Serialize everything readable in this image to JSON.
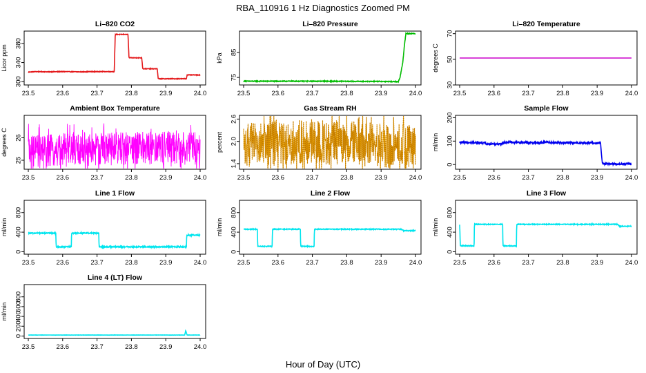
{
  "figure": {
    "title": "RBA_110916  1 Hz Diagnostics Zoomed PM",
    "xlabel": "Hour of Day (UTC)"
  },
  "chart_data": [
    {
      "type": "line",
      "title": "Li–820 CO2",
      "ylabel": "Licor ppm",
      "color": "#e41a1c",
      "xlim": [
        23.5,
        24.0
      ],
      "ylim": [
        293,
        406
      ],
      "yticks": [
        300,
        340,
        380
      ],
      "xticks": [
        "23.5",
        "23.6",
        "23.7",
        "23.8",
        "23.9",
        "24.0"
      ],
      "series": [
        {
          "noise": 0.6,
          "points": [
            [
              23.5,
              320
            ],
            [
              23.52,
              321
            ],
            [
              23.56,
              320.5
            ],
            [
              23.6,
              321
            ],
            [
              23.65,
              320.5
            ],
            [
              23.69,
              321
            ],
            [
              23.75,
              321
            ],
            [
              23.753,
              399
            ],
            [
              23.79,
              399
            ],
            [
              23.793,
              350
            ],
            [
              23.83,
              350
            ],
            [
              23.833,
              327
            ],
            [
              23.875,
              327
            ],
            [
              23.878,
              306
            ],
            [
              23.96,
              306
            ],
            [
              23.962,
              314
            ],
            [
              24.0,
              314
            ]
          ]
        }
      ]
    },
    {
      "type": "line",
      "title": "Li–820 Pressure",
      "ylabel": "kPa",
      "color": "#00bb00",
      "xlim": [
        23.5,
        24.0
      ],
      "ylim": [
        72,
        93.5
      ],
      "yticks": [
        75,
        85
      ],
      "xticks": [
        "23.5",
        "23.6",
        "23.7",
        "23.8",
        "23.9",
        "24.0"
      ],
      "series": [
        {
          "noise": 0.15,
          "points": [
            [
              23.5,
              73.5
            ],
            [
              23.7,
              73.5
            ],
            [
              23.9,
              73.4
            ],
            [
              23.95,
              73.3
            ],
            [
              23.955,
              75
            ],
            [
              23.963,
              81
            ],
            [
              23.968,
              88
            ],
            [
              23.972,
              92.5
            ],
            [
              24.0,
              92.5
            ]
          ]
        }
      ]
    },
    {
      "type": "line",
      "title": "Li–820 Temperature",
      "ylabel": "degrees C",
      "color": "#cc00cc",
      "xlim": [
        23.5,
        24.0
      ],
      "ylim": [
        30,
        72
      ],
      "yticks": [
        30,
        50,
        70
      ],
      "xticks": [
        "23.5",
        "23.6",
        "23.7",
        "23.8",
        "23.9",
        "24.0"
      ],
      "series": [
        {
          "noise": 0,
          "points": [
            [
              23.5,
              51
            ],
            [
              24.0,
              51
            ]
          ]
        }
      ]
    },
    {
      "type": "line",
      "title": "Ambient Box Temperature",
      "ylabel": "degrees C",
      "color": "#ff00ff",
      "xlim": [
        23.5,
        24.0
      ],
      "ylim": [
        24.6,
        27.0
      ],
      "yticks": [
        25.0,
        26.0
      ],
      "xticks": [
        "23.5",
        "23.6",
        "23.7",
        "23.8",
        "23.9",
        "24.0"
      ],
      "series": [
        {
          "noise": 0.75,
          "points": [
            [
              23.5,
              25.35
            ],
            [
              23.6,
              25.45
            ],
            [
              23.7,
              25.5
            ],
            [
              23.8,
              25.55
            ],
            [
              23.9,
              25.55
            ],
            [
              24.0,
              25.55
            ]
          ]
        }
      ]
    },
    {
      "type": "scatter",
      "title": "Gas Stream RH",
      "ylabel": "percent",
      "color": "#e69f00",
      "xlim": [
        23.5,
        24.0
      ],
      "ylim": [
        1.25,
        2.7
      ],
      "yticks": [
        1.4,
        2.0,
        2.6
      ],
      "xticks": [
        "23.5",
        "23.6",
        "23.7",
        "23.8",
        "23.9",
        "24.0"
      ],
      "series": [
        {
          "noise": 0.6,
          "points": [
            [
              23.5,
              1.9
            ],
            [
              23.6,
              1.95
            ],
            [
              23.7,
              2.0
            ],
            [
              23.8,
              1.95
            ],
            [
              23.9,
              1.9
            ],
            [
              24.0,
              1.85
            ]
          ]
        }
      ]
    },
    {
      "type": "line",
      "title": "Sample Flow",
      "ylabel": "ml/min",
      "color": "#0000ee",
      "xlim": [
        23.5,
        24.0
      ],
      "ylim": [
        -20,
        210
      ],
      "yticks": [
        0,
        100,
        200
      ],
      "xticks": [
        "23.5",
        "23.6",
        "23.7",
        "23.8",
        "23.9",
        "24.0"
      ],
      "series": [
        {
          "noise": 4,
          "points": [
            [
              23.5,
              95
            ],
            [
              23.57,
              93
            ],
            [
              23.58,
              88
            ],
            [
              23.62,
              88
            ],
            [
              23.63,
              95
            ],
            [
              23.74,
              93
            ],
            [
              23.75,
              96
            ],
            [
              23.8,
              93
            ],
            [
              23.91,
              92
            ],
            [
              23.915,
              3
            ],
            [
              24.0,
              2
            ]
          ]
        }
      ]
    },
    {
      "type": "line",
      "title": "Line 1 Flow",
      "ylabel": "ml/min",
      "color": "#00e5ee",
      "xlim": [
        23.5,
        24.0
      ],
      "ylim": [
        -50,
        1050
      ],
      "yticks": [
        0,
        400,
        800
      ],
      "xticks": [
        "23.5",
        "23.6",
        "23.7",
        "23.8",
        "23.9",
        "24.0"
      ],
      "series": [
        {
          "noise": 12,
          "points": [
            [
              23.5,
              380
            ],
            [
              23.58,
              380
            ],
            [
              23.581,
              100
            ],
            [
              23.625,
              100
            ],
            [
              23.626,
              380
            ],
            [
              23.705,
              380
            ],
            [
              23.706,
              100
            ],
            [
              23.96,
              100
            ],
            [
              23.961,
              340
            ],
            [
              24.0,
              340
            ]
          ]
        }
      ]
    },
    {
      "type": "line",
      "title": "Line 2 Flow",
      "ylabel": "ml/min",
      "color": "#00e5ee",
      "xlim": [
        23.5,
        24.0
      ],
      "ylim": [
        -50,
        1050
      ],
      "yticks": [
        0,
        400,
        800
      ],
      "xticks": [
        "23.5",
        "23.6",
        "23.7",
        "23.8",
        "23.9",
        "24.0"
      ],
      "series": [
        {
          "noise": 8,
          "points": [
            [
              23.5,
              460
            ],
            [
              23.54,
              460
            ],
            [
              23.541,
              110
            ],
            [
              23.583,
              110
            ],
            [
              23.584,
              460
            ],
            [
              23.665,
              460
            ],
            [
              23.666,
              110
            ],
            [
              23.705,
              110
            ],
            [
              23.706,
              460
            ],
            [
              23.96,
              460
            ],
            [
              23.965,
              430
            ],
            [
              24.0,
              430
            ]
          ]
        }
      ]
    },
    {
      "type": "line",
      "title": "Line 3 Flow",
      "ylabel": "ml/min",
      "color": "#00e5ee",
      "xlim": [
        23.5,
        24.0
      ],
      "ylim": [
        -50,
        1050
      ],
      "yticks": [
        0,
        400,
        800
      ],
      "xticks": [
        "23.5",
        "23.6",
        "23.7",
        "23.8",
        "23.9",
        "24.0"
      ],
      "series": [
        {
          "noise": 8,
          "points": [
            [
              23.5,
              560
            ],
            [
              23.502,
              120
            ],
            [
              23.542,
              120
            ],
            [
              23.543,
              560
            ],
            [
              23.625,
              560
            ],
            [
              23.626,
              120
            ],
            [
              23.665,
              120
            ],
            [
              23.666,
              560
            ],
            [
              23.96,
              560
            ],
            [
              23.965,
              520
            ],
            [
              24.0,
              520
            ]
          ]
        }
      ]
    },
    {
      "type": "line",
      "title": "Line 4 (LT) Flow",
      "ylabel": "ml/min",
      "color": "#00e5ee",
      "xlim": [
        23.5,
        24.0
      ],
      "ylim": [
        -50,
        1050
      ],
      "yticks": [
        0,
        200,
        400,
        600,
        800
      ],
      "xticks": [
        "23.5",
        "23.6",
        "23.7",
        "23.8",
        "23.9",
        "24.0"
      ],
      "series": [
        {
          "noise": 2,
          "points": [
            [
              23.5,
              20
            ],
            [
              23.955,
              20
            ],
            [
              23.958,
              110
            ],
            [
              23.962,
              20
            ],
            [
              24.0,
              20
            ]
          ]
        }
      ]
    }
  ]
}
